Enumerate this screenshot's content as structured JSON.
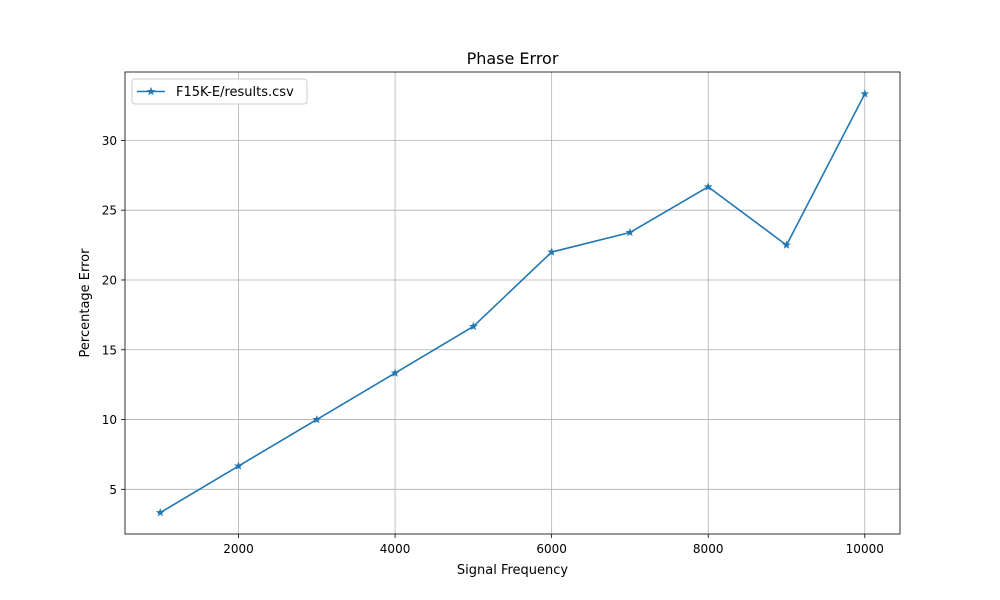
{
  "chart_data": {
    "type": "line",
    "title": "Phase Error",
    "xlabel": "Signal Frequency",
    "ylabel": "Percentage Error",
    "xlim": [
      550,
      10450
    ],
    "ylim": [
      1.8,
      34.9
    ],
    "xticks": [
      2000,
      4000,
      6000,
      8000,
      10000
    ],
    "yticks": [
      5,
      10,
      15,
      20,
      25,
      30
    ],
    "grid": true,
    "legend_position": "top-left",
    "color": "#1f77b4",
    "marker": "star",
    "series": [
      {
        "name": "F15K-E/results.csv",
        "x": [
          1000,
          2000,
          3000,
          4000,
          5000,
          6000,
          7000,
          8000,
          9000,
          10000
        ],
        "y": [
          3.33,
          6.67,
          10.0,
          13.33,
          16.67,
          22.0,
          23.4,
          26.67,
          22.5,
          33.33
        ]
      }
    ]
  }
}
